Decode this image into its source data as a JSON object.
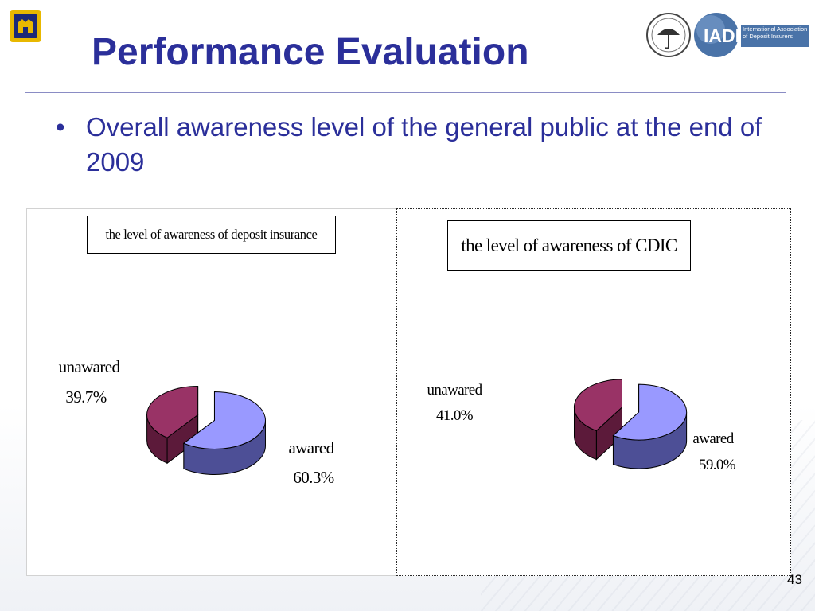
{
  "slide": {
    "title": "Performance Evaluation",
    "bullet": "Overall awareness level of the general public at the end of 2009",
    "page_number": "43"
  },
  "logos": {
    "left_icon": "agency-logo-icon",
    "right_text": "IADI",
    "right_subtext": "International Association of Deposit Insurers"
  },
  "colors": {
    "title": "#2b2f9a",
    "awared": "#9999ff",
    "awared_side": "#4d4f96",
    "unawared": "#993366",
    "unawared_side": "#5c1a3a"
  },
  "chart_data": [
    {
      "type": "pie",
      "title": "the level of awareness of deposit insurance",
      "slices": [
        {
          "label": "awared",
          "value": 60.3,
          "value_label": "60.3%"
        },
        {
          "label": "unawared",
          "value": 39.7,
          "value_label": "39.7%"
        }
      ]
    },
    {
      "type": "pie",
      "title": "the level of awareness  of CDIC",
      "slices": [
        {
          "label": "awared",
          "value": 59.0,
          "value_label": "59.0%"
        },
        {
          "label": "unawared",
          "value": 41.0,
          "value_label": "41.0%"
        }
      ]
    }
  ]
}
